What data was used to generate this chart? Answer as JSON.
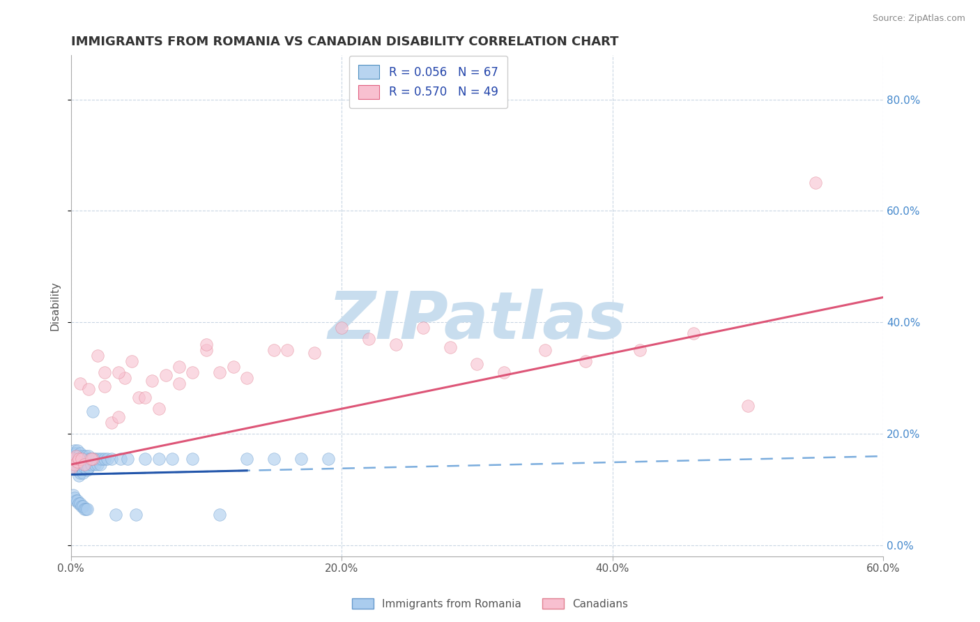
{
  "title": "IMMIGRANTS FROM ROMANIA VS CANADIAN DISABILITY CORRELATION CHART",
  "source": "Source: ZipAtlas.com",
  "xlabel_ticks": [
    "0.0%",
    "20.0%",
    "40.0%",
    "60.0%"
  ],
  "ylabel_ticks": [
    "0.0%",
    "20.0%",
    "40.0%",
    "60.0%",
    "80.0%"
  ],
  "ylabel_label": "Disability",
  "xlim": [
    0.0,
    0.6
  ],
  "ylim": [
    -0.02,
    0.88
  ],
  "legend_entries": [
    {
      "label": "R = 0.056   N = 67",
      "facecolor": "#b8d4f0",
      "edgecolor": "#5090c0"
    },
    {
      "label": "R = 0.570   N = 49",
      "facecolor": "#f8c0d0",
      "edgecolor": "#e06080"
    }
  ],
  "series1_color": "#aaccee",
  "series1_edge": "#6699cc",
  "series2_color": "#f8c0d0",
  "series2_edge": "#e08090",
  "trend1_solid_color": "#2255aa",
  "trend1_dash_color": "#7aacdd",
  "trend2_color": "#dd5577",
  "watermark": "ZIPatlas",
  "watermark_color": "#ccddeebb",
  "background": "#ffffff",
  "grid_color": "#bbccdd",
  "trend1_x_end_solid": 0.13,
  "trend2_intercept": 0.145,
  "trend2_slope": 0.5,
  "trend1_intercept": 0.127,
  "trend1_slope": 0.055,
  "series1_x": [
    0.001,
    0.002,
    0.002,
    0.003,
    0.003,
    0.003,
    0.004,
    0.004,
    0.004,
    0.005,
    0.005,
    0.005,
    0.006,
    0.006,
    0.006,
    0.007,
    0.007,
    0.007,
    0.008,
    0.008,
    0.009,
    0.009,
    0.01,
    0.01,
    0.011,
    0.011,
    0.012,
    0.012,
    0.013,
    0.013,
    0.014,
    0.015,
    0.016,
    0.017,
    0.018,
    0.019,
    0.02,
    0.021,
    0.022,
    0.023,
    0.025,
    0.027,
    0.03,
    0.033,
    0.037,
    0.042,
    0.048,
    0.055,
    0.065,
    0.075,
    0.09,
    0.11,
    0.13,
    0.15,
    0.17,
    0.19,
    0.002,
    0.003,
    0.004,
    0.005,
    0.006,
    0.007,
    0.008,
    0.009,
    0.01,
    0.011,
    0.012
  ],
  "series1_y": [
    0.14,
    0.155,
    0.165,
    0.15,
    0.16,
    0.17,
    0.145,
    0.155,
    0.165,
    0.135,
    0.15,
    0.17,
    0.125,
    0.145,
    0.16,
    0.13,
    0.15,
    0.165,
    0.14,
    0.155,
    0.13,
    0.16,
    0.14,
    0.155,
    0.145,
    0.16,
    0.135,
    0.155,
    0.14,
    0.16,
    0.155,
    0.145,
    0.24,
    0.155,
    0.145,
    0.155,
    0.145,
    0.155,
    0.145,
    0.155,
    0.155,
    0.155,
    0.155,
    0.055,
    0.155,
    0.155,
    0.055,
    0.155,
    0.155,
    0.155,
    0.155,
    0.055,
    0.155,
    0.155,
    0.155,
    0.155,
    0.09,
    0.085,
    0.08,
    0.08,
    0.075,
    0.075,
    0.07,
    0.07,
    0.065,
    0.065,
    0.065
  ],
  "series2_x": [
    0.001,
    0.002,
    0.003,
    0.004,
    0.005,
    0.006,
    0.007,
    0.008,
    0.01,
    0.013,
    0.016,
    0.02,
    0.025,
    0.03,
    0.035,
    0.04,
    0.05,
    0.06,
    0.07,
    0.08,
    0.09,
    0.1,
    0.11,
    0.12,
    0.13,
    0.15,
    0.16,
    0.18,
    0.2,
    0.22,
    0.24,
    0.26,
    0.28,
    0.3,
    0.32,
    0.35,
    0.38,
    0.42,
    0.46,
    0.5,
    0.55,
    0.015,
    0.025,
    0.035,
    0.045,
    0.055,
    0.065,
    0.08,
    0.1
  ],
  "series2_y": [
    0.14,
    0.155,
    0.145,
    0.16,
    0.15,
    0.155,
    0.29,
    0.155,
    0.145,
    0.28,
    0.155,
    0.34,
    0.285,
    0.22,
    0.23,
    0.3,
    0.265,
    0.295,
    0.305,
    0.29,
    0.31,
    0.35,
    0.31,
    0.32,
    0.3,
    0.35,
    0.35,
    0.345,
    0.39,
    0.37,
    0.36,
    0.39,
    0.355,
    0.325,
    0.31,
    0.35,
    0.33,
    0.35,
    0.38,
    0.25,
    0.65,
    0.155,
    0.31,
    0.31,
    0.33,
    0.265,
    0.245,
    0.32,
    0.36
  ]
}
